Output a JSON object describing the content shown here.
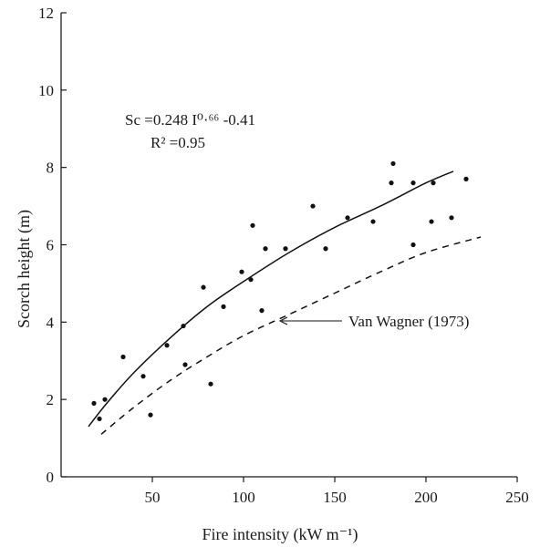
{
  "chart_data": {
    "type": "scatter",
    "title": "",
    "xlabel": "Fire intensity (kW m⁻¹)",
    "ylabel": "Scorch height (m)",
    "xlim": [
      0,
      250
    ],
    "ylim": [
      0,
      12
    ],
    "xticks": [
      50,
      100,
      150,
      200,
      250
    ],
    "yticks": [
      0,
      2,
      4,
      6,
      8,
      10,
      12
    ],
    "grid": false,
    "equation": "Sc =0.248 I⁰·⁶⁶ -0.41",
    "r_squared": "R² =0.95",
    "points": [
      {
        "x": 18,
        "y": 1.9
      },
      {
        "x": 21,
        "y": 1.5
      },
      {
        "x": 24,
        "y": 2.0
      },
      {
        "x": 34,
        "y": 3.1
      },
      {
        "x": 45,
        "y": 2.6
      },
      {
        "x": 49,
        "y": 1.6
      },
      {
        "x": 58,
        "y": 3.4
      },
      {
        "x": 67,
        "y": 3.9
      },
      {
        "x": 68,
        "y": 2.9
      },
      {
        "x": 78,
        "y": 4.9
      },
      {
        "x": 82,
        "y": 2.4
      },
      {
        "x": 89,
        "y": 4.4
      },
      {
        "x": 99,
        "y": 5.3
      },
      {
        "x": 104,
        "y": 5.1
      },
      {
        "x": 105,
        "y": 6.5
      },
      {
        "x": 110,
        "y": 4.3
      },
      {
        "x": 112,
        "y": 5.9
      },
      {
        "x": 123,
        "y": 5.9
      },
      {
        "x": 138,
        "y": 7.0
      },
      {
        "x": 145,
        "y": 5.9
      },
      {
        "x": 157,
        "y": 6.7
      },
      {
        "x": 171,
        "y": 6.6
      },
      {
        "x": 181,
        "y": 7.6
      },
      {
        "x": 182,
        "y": 8.1
      },
      {
        "x": 193,
        "y": 7.6
      },
      {
        "x": 193,
        "y": 6.0
      },
      {
        "x": 203,
        "y": 6.6
      },
      {
        "x": 204,
        "y": 7.6
      },
      {
        "x": 214,
        "y": 6.7
      },
      {
        "x": 222,
        "y": 7.7
      }
    ],
    "fit_curve": {
      "x": [
        15,
        25,
        40,
        60,
        80,
        100,
        125,
        150,
        175,
        200,
        215
      ],
      "y": [
        1.3,
        1.9,
        2.7,
        3.6,
        4.4,
        5.05,
        5.8,
        6.45,
        7.0,
        7.6,
        7.9
      ]
    },
    "reference_curve": {
      "name": "Van Wagner (1973)",
      "x": [
        22,
        40,
        60,
        80,
        100,
        125,
        150,
        175,
        200,
        230
      ],
      "y": [
        1.1,
        1.8,
        2.5,
        3.1,
        3.65,
        4.2,
        4.75,
        5.3,
        5.8,
        6.2
      ]
    }
  }
}
